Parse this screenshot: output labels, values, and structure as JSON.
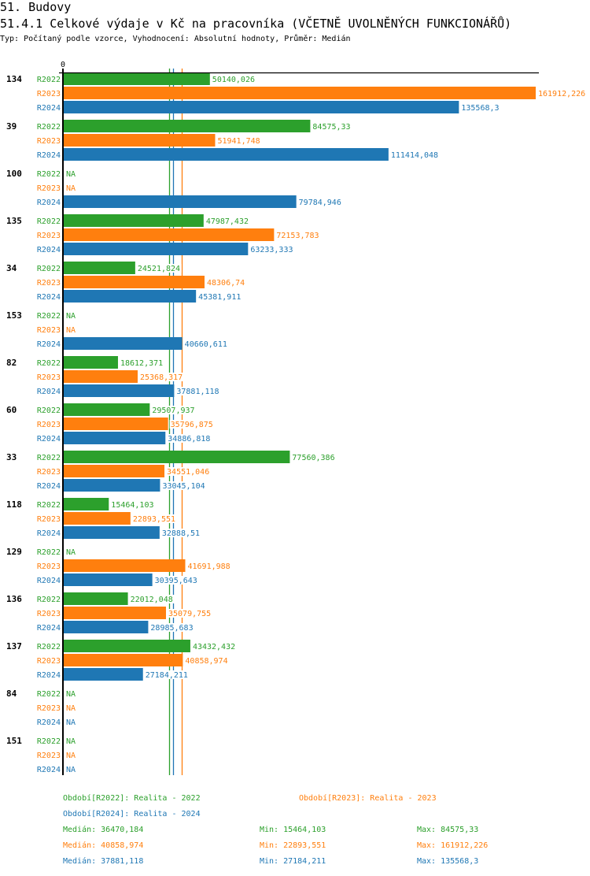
{
  "header": {
    "section": "51. Budovy",
    "title": "51.4.1 Celkové výdaje v Kč na pracovníka (VČETNĚ UVOLNĚNÝCH FUNKCIONÁŘŮ)",
    "subtitle": "Typ: Počítaný podle vzorce, Vyhodnocení: Absolutní hodnoty, Průměr: Medián"
  },
  "colors": {
    "R2022": "#2ca02c",
    "R2023": "#ff7f0e",
    "R2024": "#1f77b4"
  },
  "chart_data": {
    "type": "bar",
    "orientation": "horizontal",
    "title": "51.4.1 Celkové výdaje v Kč na pracovníka (VČETNĚ UVOLNĚNÝCH FUNKCIONÁŘŮ)",
    "axis_zero_label": "0",
    "xlim": [
      0,
      161912.226
    ],
    "na_label": "NA",
    "series_names": [
      "R2022",
      "R2023",
      "R2024"
    ],
    "categories": [
      "134",
      "39",
      "100",
      "135",
      "34",
      "153",
      "82",
      "60",
      "33",
      "118",
      "129",
      "136",
      "137",
      "84",
      "151"
    ],
    "series": [
      {
        "name": "R2022",
        "values": [
          50140.026,
          84575.33,
          null,
          47987.432,
          24521.824,
          null,
          18612.371,
          29507.937,
          77560.386,
          15464.103,
          null,
          22012.048,
          43432.432,
          null,
          null
        ],
        "labels": [
          "50140,026",
          "84575,33",
          "NA",
          "47987,432",
          "24521,824",
          "NA",
          "18612,371",
          "29507,937",
          "77560,386",
          "15464,103",
          "NA",
          "22012,048",
          "43432,432",
          "NA",
          "NA"
        ]
      },
      {
        "name": "R2023",
        "values": [
          161912.226,
          51941.748,
          null,
          72153.783,
          48306.74,
          null,
          25368.317,
          35796.875,
          34551.046,
          22893.551,
          41691.988,
          35079.755,
          40858.974,
          null,
          null
        ],
        "labels": [
          "161912,226",
          "51941,748",
          "NA",
          "72153,783",
          "48306,74",
          "NA",
          "25368,317",
          "35796,875",
          "34551,046",
          "22893,551",
          "41691,988",
          "35079,755",
          "40858,974",
          "NA",
          "NA"
        ]
      },
      {
        "name": "R2024",
        "values": [
          135568.3,
          111414.048,
          79784.946,
          63233.333,
          45381.911,
          40660.611,
          37881.118,
          34886.818,
          33045.104,
          32888.51,
          30395.643,
          28985.683,
          27184.211,
          null,
          null
        ],
        "labels": [
          "135568,3",
          "111414,048",
          "79784,946",
          "63233,333",
          "45381,911",
          "40660,611",
          "37881,118",
          "34886,818",
          "33045,104",
          "32888,51",
          "30395,643",
          "28985,683",
          "27184,211",
          "NA",
          "NA"
        ]
      }
    ],
    "medians": [
      {
        "name": "R2022",
        "value": 36470.184
      },
      {
        "name": "R2023",
        "value": 40858.974
      },
      {
        "name": "R2024",
        "value": 37881.118
      }
    ]
  },
  "legend": {
    "periods": [
      {
        "name": "R2022",
        "text": "Období[R2022]: Realita - 2022"
      },
      {
        "name": "R2023",
        "text": "Období[R2023]: Realita - 2023"
      },
      {
        "name": "R2024",
        "text": "Období[R2024]: Realita - 2024"
      }
    ],
    "stats": [
      {
        "name": "R2022",
        "median": "Medián: 36470,184",
        "min": "Min: 15464,103",
        "max": "Max: 84575,33"
      },
      {
        "name": "R2023",
        "median": "Medián: 40858,974",
        "min": "Min: 22893,551",
        "max": "Max: 161912,226"
      },
      {
        "name": "R2024",
        "median": "Medián: 37881,118",
        "min": "Min: 27184,211",
        "max": "Max: 135568,3"
      }
    ]
  }
}
